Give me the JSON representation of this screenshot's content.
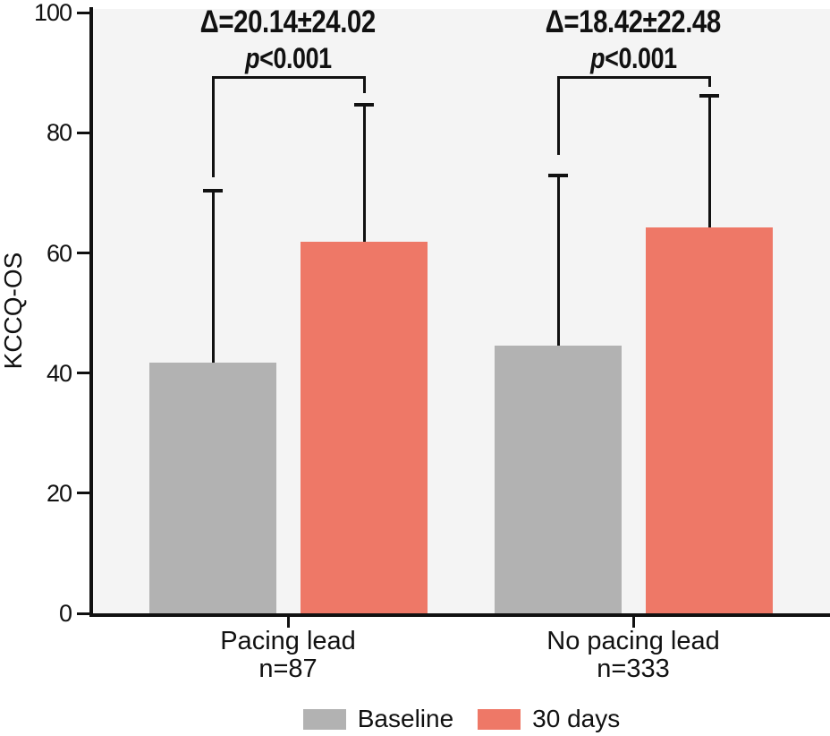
{
  "chart_data": {
    "type": "bar",
    "ylabel": "KCCQ-OS",
    "ylim": [
      0,
      100
    ],
    "yticks": [
      0,
      20,
      40,
      60,
      80,
      100
    ],
    "grid": false,
    "plot_bg_color": "#f4f4f4",
    "axis_color": "#111111",
    "categories": [
      "Pacing lead",
      "No pacing lead"
    ],
    "category_sublabels": [
      "n=87",
      "n=333"
    ],
    "series": [
      {
        "name": "Baseline",
        "color": "#b2b2b2",
        "values": [
          41.8,
          44.6
        ],
        "error_tops": [
          70.3,
          72.9
        ]
      },
      {
        "name": "30 days",
        "color": "#ee7867",
        "values": [
          61.9,
          64.3
        ],
        "error_tops": [
          84.7,
          86.2
        ]
      }
    ],
    "annotations": [
      {
        "delta": "Δ=20.14±24.02",
        "p_italic": "p",
        "p_rest": "<0.001"
      },
      {
        "delta": "Δ=18.42±22.48",
        "p_italic": "p",
        "p_rest": "<0.001"
      }
    ],
    "brackets": [
      {
        "top_value": 89.3,
        "left_leg_bottom": 72.6,
        "right_leg_bottom": 86.7
      },
      {
        "top_value": 89.3,
        "left_leg_bottom": 76.3,
        "right_leg_bottom": 87.7
      }
    ],
    "legend": [
      {
        "label": "Baseline",
        "color": "#b2b2b2"
      },
      {
        "label": "30 days",
        "color": "#ee7867"
      }
    ],
    "legend_position": "bottom"
  }
}
